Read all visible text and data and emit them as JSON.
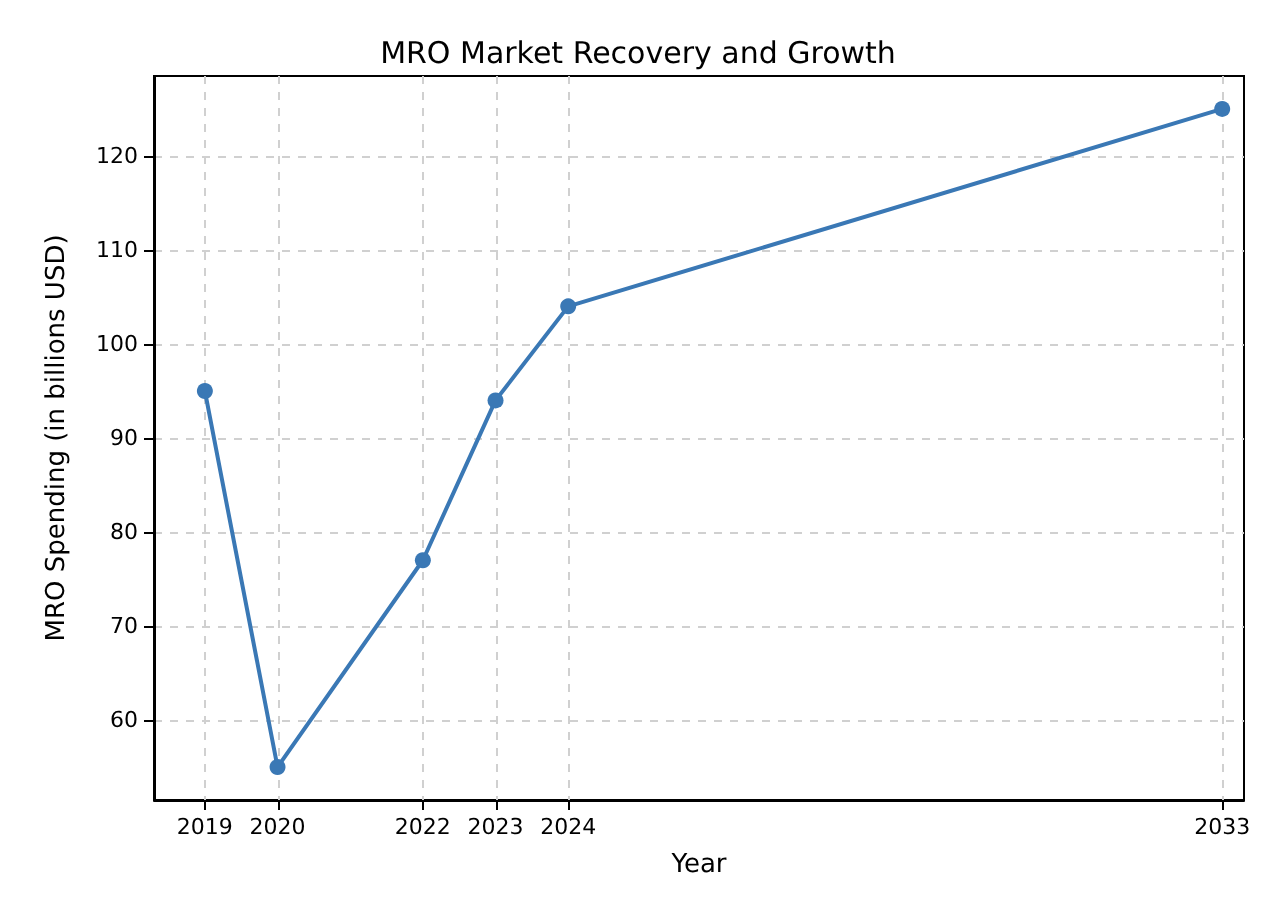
{
  "chart_data": {
    "type": "line",
    "title": "MRO Market Recovery and Growth",
    "xlabel": "Year",
    "ylabel": "MRO Spending (in billions USD)",
    "x": [
      2019,
      2020,
      2022,
      2023,
      2024,
      2033
    ],
    "series": [
      {
        "color": "#3a78b5",
        "values": [
          95,
          55,
          77,
          94,
          104,
          125
        ]
      }
    ],
    "xlim": [
      2018.3,
      2033.3
    ],
    "xticks": [
      2019,
      2020,
      2022,
      2023,
      2024,
      2033
    ],
    "ylim": [
      51.5,
      128.5
    ],
    "yticks": [
      60,
      70,
      80,
      90,
      100,
      110,
      120
    ],
    "grid": true,
    "marker": "circle",
    "line_style": "solid"
  }
}
